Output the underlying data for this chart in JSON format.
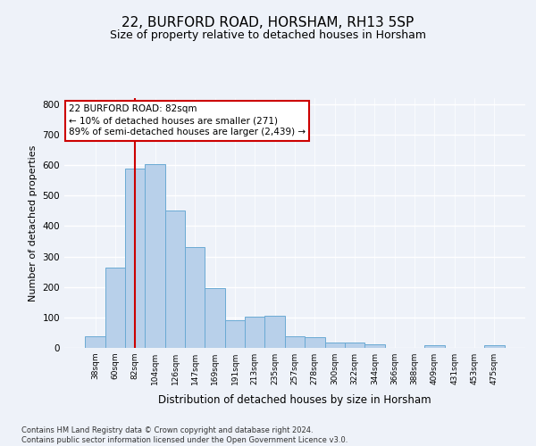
{
  "title": "22, BURFORD ROAD, HORSHAM, RH13 5SP",
  "subtitle": "Size of property relative to detached houses in Horsham",
  "xlabel": "Distribution of detached houses by size in Horsham",
  "ylabel": "Number of detached properties",
  "categories": [
    "38sqm",
    "60sqm",
    "82sqm",
    "104sqm",
    "126sqm",
    "147sqm",
    "169sqm",
    "191sqm",
    "213sqm",
    "235sqm",
    "257sqm",
    "278sqm",
    "300sqm",
    "322sqm",
    "344sqm",
    "366sqm",
    "388sqm",
    "409sqm",
    "431sqm",
    "453sqm",
    "475sqm"
  ],
  "values": [
    37,
    265,
    590,
    604,
    452,
    330,
    196,
    90,
    102,
    104,
    37,
    35,
    18,
    18,
    12,
    0,
    0,
    8,
    0,
    0,
    8
  ],
  "bar_color": "#b8d0ea",
  "bar_edge_color": "#6aaad4",
  "vline_x": 2,
  "vline_color": "#cc0000",
  "annotation_text": "22 BURFORD ROAD: 82sqm\n← 10% of detached houses are smaller (271)\n89% of semi-detached houses are larger (2,439) →",
  "annotation_box_color": "#ffffff",
  "annotation_box_edge_color": "#cc0000",
  "ylim": [
    0,
    820
  ],
  "yticks": [
    0,
    100,
    200,
    300,
    400,
    500,
    600,
    700,
    800
  ],
  "background_color": "#eef2f9",
  "grid_color": "#ffffff",
  "footer_text": "Contains HM Land Registry data © Crown copyright and database right 2024.\nContains public sector information licensed under the Open Government Licence v3.0.",
  "title_fontsize": 11,
  "subtitle_fontsize": 9,
  "annotation_fontsize": 7.5,
  "ylabel_fontsize": 8,
  "xlabel_fontsize": 8.5
}
